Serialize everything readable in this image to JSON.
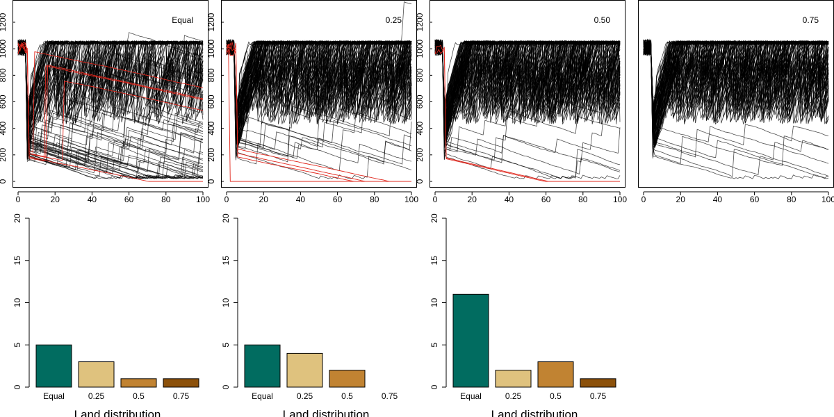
{
  "chart_data": [
    {
      "type": "line",
      "panel_label": "Equal",
      "xlim": [
        0,
        100
      ],
      "ylim": [
        0,
        1200
      ],
      "x_ticks": [
        0,
        20,
        40,
        60,
        80,
        100
      ],
      "y_ticks": [
        0,
        200,
        400,
        600,
        800,
        1000,
        1200
      ],
      "series": [
        {
          "color": "#000000",
          "description_values": "many stochastic trajectories oscillating between ~150 and ~1050 over time steps 0-100; several decline toward 0-200 by step 100"
        },
        {
          "color": "#e0271d",
          "description_values": "a few red trajectories collapsing to 0 between steps 20 and 95"
        }
      ]
    },
    {
      "type": "line",
      "panel_label": "0.25",
      "xlim": [
        0,
        100
      ],
      "ylim": [
        0,
        1200
      ],
      "x_ticks": [
        0,
        20,
        40,
        60,
        80,
        100
      ],
      "y_ticks": [
        0,
        200,
        400,
        600,
        800,
        1000,
        1200
      ],
      "series": [
        {
          "color": "#000000",
          "description_values": "dense trajectories between ~500 and ~1060; a few declining to ~50-300 by step 100"
        },
        {
          "color": "#e0271d",
          "description_values": "red trajectories collapsing to 0 (one at step 2, others by step 90-100)"
        }
      ]
    },
    {
      "type": "line",
      "panel_label": "0.50",
      "xlim": [
        0,
        100
      ],
      "ylim": [
        0,
        1200
      ],
      "x_ticks": [
        0,
        20,
        40,
        60,
        80,
        100
      ],
      "y_ticks": [
        0,
        200,
        400,
        600,
        800,
        1000,
        1200
      ],
      "series": [
        {
          "color": "#000000",
          "description_values": "dense trajectories between ~600 and ~1060; a few declining to ~130-350 by step 100"
        },
        {
          "color": "#e0271d",
          "description_values": "red trajectories declining to 0 by step 60-65"
        }
      ]
    },
    {
      "type": "line",
      "panel_label": "0.75",
      "xlim": [
        0,
        100
      ],
      "ylim": [
        0,
        1200
      ],
      "x_ticks": [
        0,
        20,
        40,
        60,
        80,
        100
      ],
      "y_ticks": [
        0,
        200,
        400,
        600,
        800,
        1000,
        1200
      ],
      "series": [
        {
          "color": "#000000",
          "description_values": "dense trajectories between ~650 and ~1060; a few declining to ~40-450 by step 100"
        }
      ]
    },
    {
      "type": "bar",
      "categories": [
        "Equal",
        "0.25",
        "0.5",
        "0.75"
      ],
      "values": [
        5,
        3,
        1,
        1
      ],
      "colors": [
        "#016c60",
        "#dfc27e",
        "#c18332",
        "#8c510b"
      ],
      "xlabel": "Land distribution",
      "ylim": [
        0,
        20
      ],
      "y_ticks": [
        0,
        5,
        10,
        15,
        20
      ]
    },
    {
      "type": "bar",
      "categories": [
        "Equal",
        "0.25",
        "0.5",
        "0.75"
      ],
      "values": [
        5,
        4,
        2,
        0
      ],
      "colors": [
        "#016c60",
        "#dfc27e",
        "#c18332",
        "#8c510b"
      ],
      "xlabel": "Land distribution",
      "ylim": [
        0,
        20
      ],
      "y_ticks": [
        0,
        5,
        10,
        15,
        20
      ]
    },
    {
      "type": "bar",
      "categories": [
        "Equal",
        "0.25",
        "0.5",
        "0.75"
      ],
      "values": [
        11,
        2,
        3,
        1
      ],
      "colors": [
        "#016c60",
        "#dfc27e",
        "#c18332",
        "#8c510b"
      ],
      "xlabel": "Land distribution",
      "ylim": [
        0,
        20
      ],
      "y_ticks": [
        0,
        5,
        10,
        15,
        20
      ]
    }
  ]
}
